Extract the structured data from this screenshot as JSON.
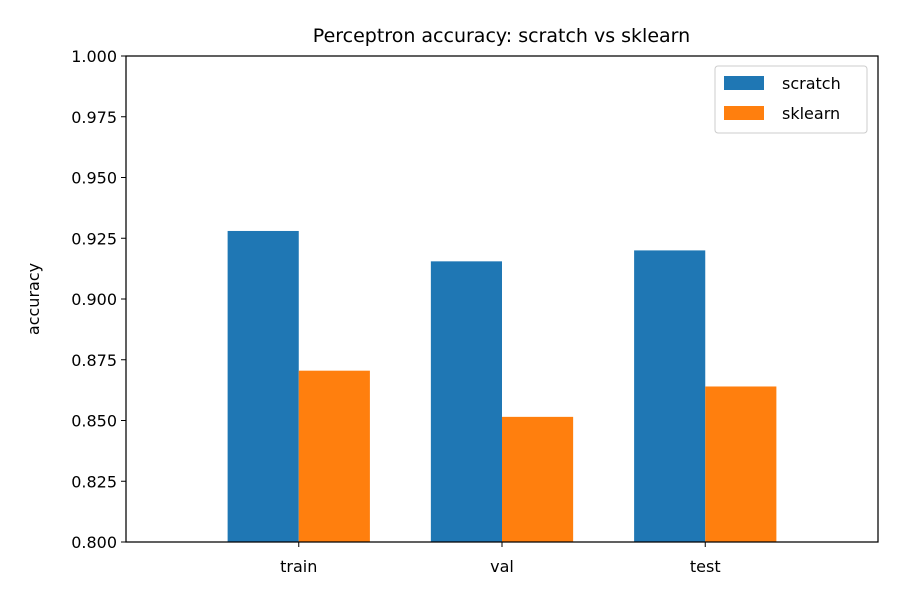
{
  "chart_data": {
    "type": "bar",
    "title": "Perceptron accuracy: scratch vs sklearn",
    "xlabel": "",
    "ylabel": "accuracy",
    "categories": [
      "train",
      "val",
      "test"
    ],
    "series": [
      {
        "name": "scratch",
        "values": [
          0.928,
          0.9155,
          0.92
        ],
        "color": "#1f77b4"
      },
      {
        "name": "sklearn",
        "values": [
          0.8705,
          0.8515,
          0.864
        ],
        "color": "#ff7f0e"
      }
    ],
    "ylim": [
      0.8,
      1.0
    ],
    "yticks": [
      "0.800",
      "0.825",
      "0.850",
      "0.875",
      "0.900",
      "0.925",
      "0.950",
      "0.975",
      "1.000"
    ],
    "grid": false,
    "legend_position": "top-right"
  }
}
